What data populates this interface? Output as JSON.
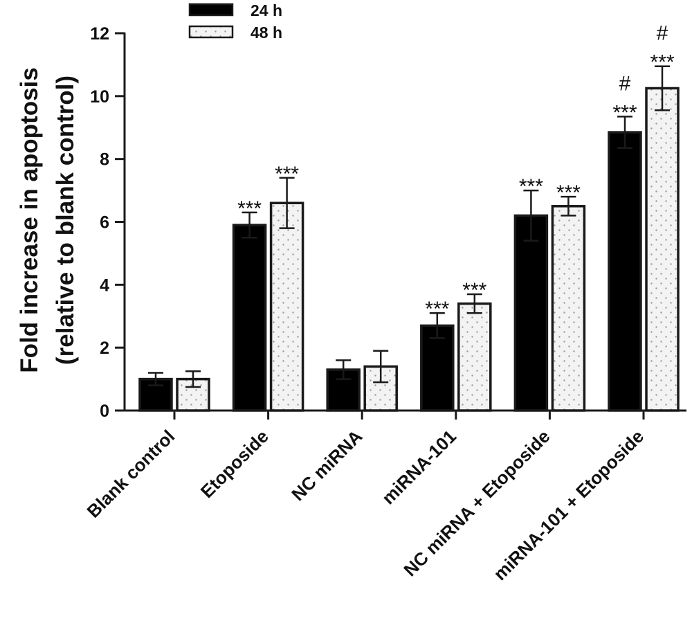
{
  "chart_data": {
    "type": "bar",
    "title": "",
    "xlabel": "",
    "ylabel_lines": [
      "Fold increase in apoptosis",
      "(relative to blank control)"
    ],
    "ylim": [
      0,
      12
    ],
    "yticks": [
      0,
      2,
      4,
      6,
      8,
      10,
      12
    ],
    "categories": [
      "Blank control",
      "Etoposide",
      "NC miRNA",
      "miRNA-101",
      "NC miRNA + Etoposide",
      "miRNA-101 + Etoposide"
    ],
    "legend_position": "top-left",
    "grid": false,
    "series": [
      {
        "name": "24 h",
        "color": "#000000",
        "pattern": "solid",
        "values": [
          1.0,
          5.9,
          1.3,
          2.7,
          6.2,
          8.85
        ],
        "errors": [
          0.2,
          0.4,
          0.3,
          0.4,
          0.8,
          0.5
        ],
        "annotations": [
          [],
          [
            "***"
          ],
          [],
          [
            "***"
          ],
          [
            "***"
          ],
          [
            "***",
            "#"
          ]
        ]
      },
      {
        "name": "48 h",
        "color": "#f2f2f2",
        "pattern": "dotted",
        "values": [
          1.0,
          6.6,
          1.4,
          3.4,
          6.5,
          10.25
        ],
        "errors": [
          0.25,
          0.8,
          0.5,
          0.3,
          0.3,
          0.7
        ],
        "annotations": [
          [],
          [
            "***"
          ],
          [],
          [
            "***"
          ],
          [
            "***"
          ],
          [
            "***",
            "#"
          ]
        ]
      }
    ]
  }
}
